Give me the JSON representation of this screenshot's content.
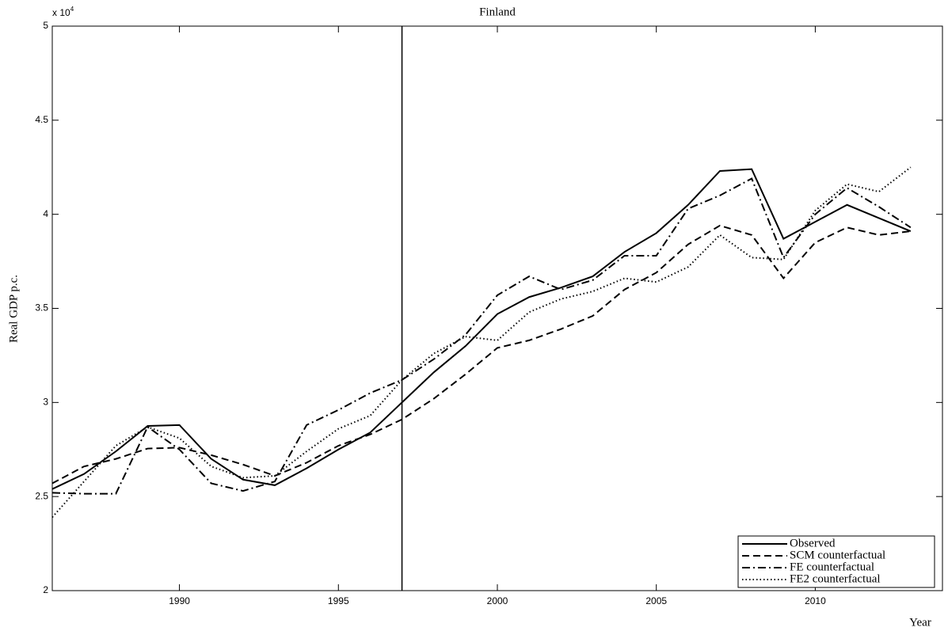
{
  "chart_data": {
    "type": "line",
    "title": "Finland",
    "y_label": "Real GDP p.c.",
    "x_label": "Year",
    "y_multiplier": {
      "base": "x 10",
      "exponent": "4"
    },
    "x": [
      1986,
      1987,
      1988,
      1989,
      1990,
      1991,
      1992,
      1993,
      1994,
      1995,
      1996,
      1997,
      1998,
      1999,
      2000,
      2001,
      2002,
      2003,
      2004,
      2005,
      2006,
      2007,
      2008,
      2009,
      2010,
      2011,
      2012,
      2013
    ],
    "series": [
      {
        "name": "Observed",
        "color": "#000000",
        "linestyle": "solid",
        "values": [
          2.54,
          2.62,
          2.74,
          2.875,
          2.88,
          2.7,
          2.59,
          2.56,
          2.65,
          2.75,
          2.84,
          3.0,
          3.16,
          3.3,
          3.47,
          3.56,
          3.61,
          3.67,
          3.8,
          3.9,
          4.05,
          4.23,
          4.24,
          3.87,
          3.96,
          4.05,
          3.98,
          3.91
        ]
      },
      {
        "name": "SCM counterfactual",
        "color": "#000000",
        "linestyle": "dashed",
        "values": [
          2.57,
          2.66,
          2.7,
          2.755,
          2.76,
          2.72,
          2.67,
          2.61,
          2.68,
          2.77,
          2.83,
          2.91,
          3.02,
          3.15,
          3.29,
          3.33,
          3.39,
          3.46,
          3.6,
          3.69,
          3.84,
          3.94,
          3.89,
          3.66,
          3.85,
          3.93,
          3.89,
          3.91
        ]
      },
      {
        "name": "FE counterfactual",
        "color": "#000000",
        "linestyle": "dashdot",
        "values": [
          2.52,
          2.515,
          2.515,
          2.87,
          2.75,
          2.57,
          2.53,
          2.58,
          2.88,
          2.96,
          3.05,
          3.12,
          3.23,
          3.36,
          3.57,
          3.67,
          3.6,
          3.65,
          3.78,
          3.78,
          4.03,
          4.1,
          4.19,
          3.77,
          4.0,
          4.14,
          4.04,
          3.93
        ]
      },
      {
        "name": "FE2 counterfactual",
        "color": "#000000",
        "linestyle": "dotted",
        "values": [
          2.39,
          2.58,
          2.77,
          2.87,
          2.81,
          2.66,
          2.6,
          2.61,
          2.74,
          2.86,
          2.93,
          3.12,
          3.26,
          3.35,
          3.33,
          3.48,
          3.55,
          3.59,
          3.66,
          3.64,
          3.72,
          3.89,
          3.77,
          3.76,
          4.02,
          4.16,
          4.12,
          4.25
        ]
      }
    ],
    "xlim": [
      1986,
      2014
    ],
    "xticks": [
      1990,
      1995,
      2000,
      2005,
      2010
    ],
    "ylim": [
      2,
      5
    ],
    "yticks": [
      2,
      2.5,
      3,
      3.5,
      4,
      4.5,
      5
    ],
    "vline": 1997,
    "legend": "lower right",
    "grid": false
  }
}
